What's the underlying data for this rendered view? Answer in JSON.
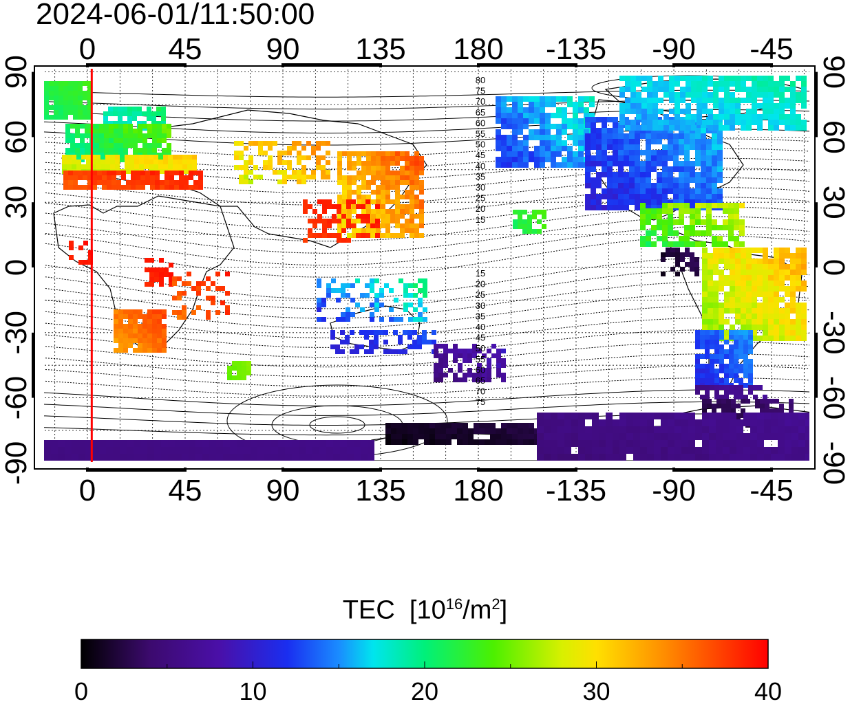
{
  "header": {
    "timestamp": "2024-06-01/11:50:00"
  },
  "map": {
    "projection": "equirectangular",
    "center_longitude": 150,
    "grid": true,
    "top_axis_labels": [
      "0",
      "45",
      "90",
      "135",
      "180",
      "-135",
      "-90",
      "-45"
    ],
    "bottom_axis_labels": [
      "0",
      "45",
      "90",
      "135",
      "180",
      "-135",
      "-90",
      "-45"
    ],
    "left_axis_labels": [
      "90",
      "60",
      "30",
      "0",
      "-30",
      "-60",
      "-90"
    ],
    "right_axis_labels": [
      "90",
      "60",
      "30",
      "0",
      "-30",
      "-60",
      "-90"
    ],
    "terminator_longitude": 2,
    "terminator_color": "#ff0000",
    "magnetic_contour_labels": [
      "80",
      "75",
      "70",
      "65",
      "60",
      "55",
      "50",
      "45",
      "40",
      "35",
      "30",
      "25",
      "20",
      "15",
      "15",
      "20",
      "25",
      "30",
      "35",
      "40",
      "45",
      "50",
      "55",
      "60",
      "65",
      "70",
      "75"
    ]
  },
  "colorbar": {
    "label": "TEC",
    "unit_base": "[10",
    "unit_exp": "16",
    "unit_mid": "/m",
    "unit_exp2": "2",
    "unit_end": "]",
    "min": 0,
    "max": 40,
    "tick_labels": [
      "0",
      "10",
      "20",
      "30",
      "40"
    ],
    "stops": [
      [
        0,
        "#000000"
      ],
      [
        0.1,
        "#3c0a6e"
      ],
      [
        0.2,
        "#4a0fa8"
      ],
      [
        0.3,
        "#1a2ef0"
      ],
      [
        0.375,
        "#1a8cff"
      ],
      [
        0.425,
        "#00e5ee"
      ],
      [
        0.5,
        "#00f07a"
      ],
      [
        0.6,
        "#4cf000"
      ],
      [
        0.7,
        "#d8f000"
      ],
      [
        0.75,
        "#ffe000"
      ],
      [
        0.85,
        "#ff8c00"
      ],
      [
        1.0,
        "#ff0000"
      ]
    ]
  }
}
